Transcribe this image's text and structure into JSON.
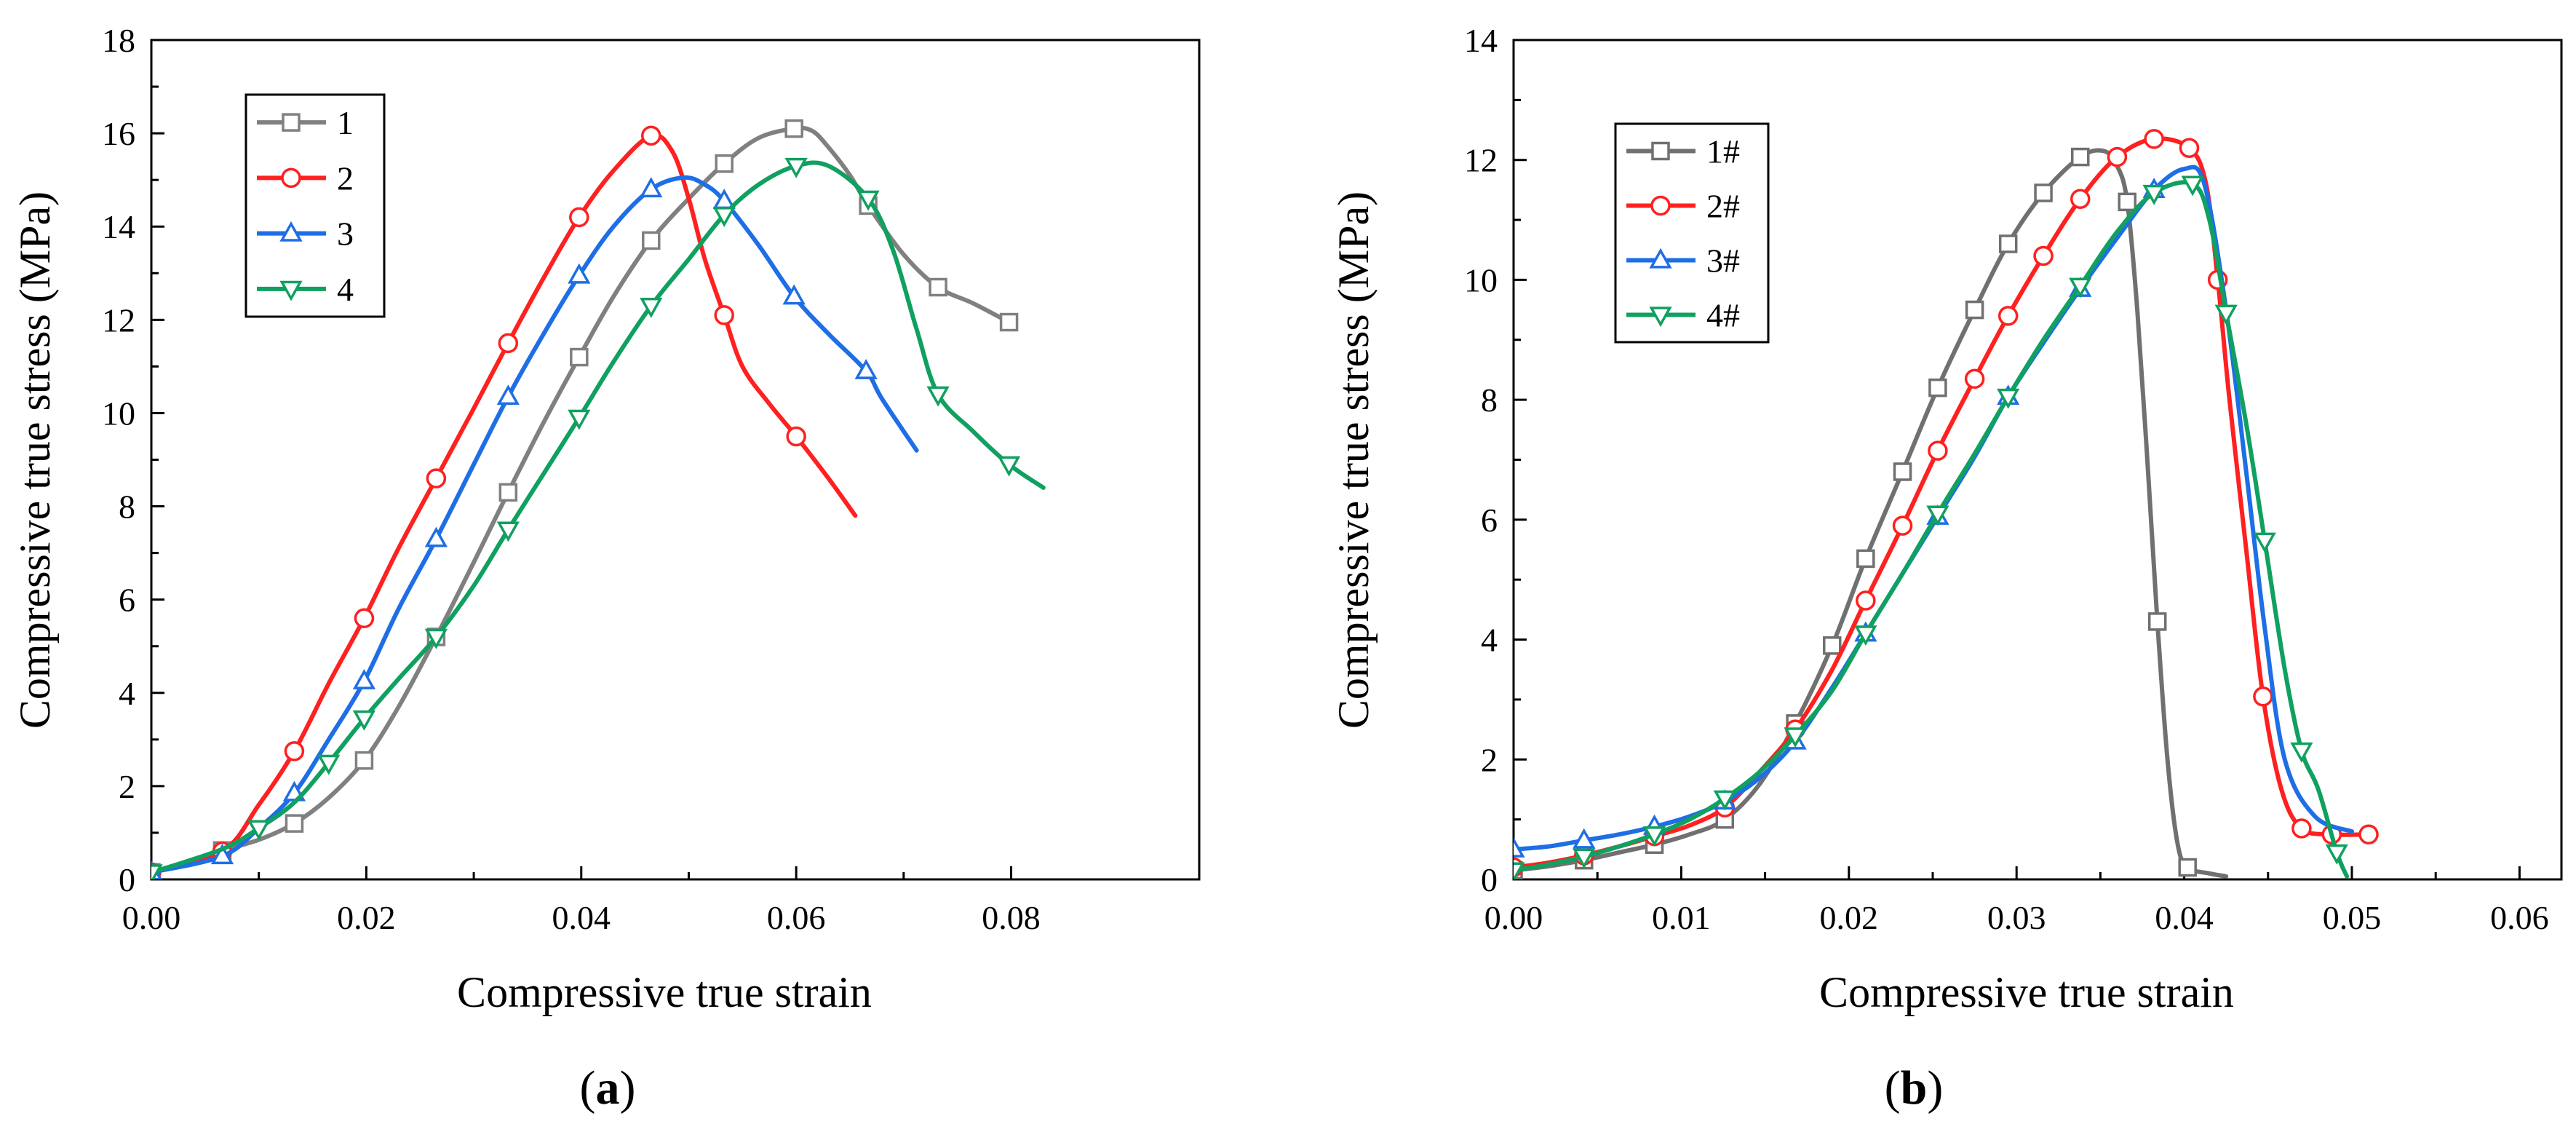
{
  "figure": {
    "panels": [
      {
        "label_open": "(",
        "label_letter": "a",
        "label_close": ")"
      },
      {
        "label_open": "(",
        "label_letter": "b",
        "label_close": ")"
      }
    ]
  },
  "chart_data": [
    {
      "type": "line",
      "title": "",
      "xlabel": "Compressive true strain",
      "ylabel": "Compressive true stress (MPa)",
      "xlim": [
        0,
        0.0975
      ],
      "ylim": [
        0,
        18
      ],
      "xticks": [
        0,
        0.02,
        0.04,
        0.06,
        0.08
      ],
      "xtick_labels": [
        "0.00",
        "0.02",
        "0.04",
        "0.06",
        "0.08"
      ],
      "yticks": [
        0,
        2,
        4,
        6,
        8,
        10,
        12,
        14,
        16,
        18
      ],
      "ytick_labels": [
        "0",
        "2",
        "4",
        "6",
        "8",
        "10",
        "12",
        "14",
        "16",
        "18"
      ],
      "grid": false,
      "legend_position": "top-left",
      "series": [
        {
          "name": "1",
          "color": "#808080",
          "marker": "square",
          "x": [
            0,
            0.003,
            0.0066,
            0.01,
            0.0133,
            0.0165,
            0.0198,
            0.023,
            0.0265,
            0.03,
            0.0332,
            0.0365,
            0.0398,
            0.043,
            0.0465,
            0.05,
            0.0533,
            0.0565,
            0.0598,
            0.0615,
            0.063,
            0.065,
            0.0667,
            0.07,
            0.0732,
            0.0765,
            0.0798
          ],
          "y": [
            0.15,
            0.35,
            0.62,
            0.85,
            1.2,
            1.75,
            2.55,
            3.7,
            5.2,
            6.8,
            8.3,
            9.8,
            11.2,
            12.5,
            13.7,
            14.6,
            15.35,
            15.9,
            16.1,
            16.05,
            15.7,
            15.1,
            14.45,
            13.4,
            12.7,
            12.35,
            11.95
          ],
          "markers_at": [
            0,
            2,
            4,
            6,
            8,
            10,
            12,
            14,
            16,
            18,
            22,
            24,
            26
          ]
        },
        {
          "name": "2",
          "color": "#ff2020",
          "marker": "circle",
          "x": [
            0,
            0.0066,
            0.01,
            0.0133,
            0.0165,
            0.0198,
            0.023,
            0.0265,
            0.03,
            0.0332,
            0.0365,
            0.0398,
            0.043,
            0.0465,
            0.0485,
            0.05,
            0.0515,
            0.0533,
            0.055,
            0.0575,
            0.06,
            0.063,
            0.0655
          ],
          "y": [
            0.15,
            0.6,
            1.6,
            2.75,
            4.2,
            5.6,
            7.1,
            8.6,
            10.1,
            11.5,
            12.9,
            14.2,
            15.2,
            15.95,
            15.6,
            14.6,
            13.3,
            12.1,
            11.0,
            10.2,
            9.5,
            8.6,
            7.8
          ],
          "markers_at": [
            0,
            1,
            3,
            5,
            7,
            9,
            11,
            13,
            17,
            20
          ]
        },
        {
          "name": "3",
          "color": "#1e6ee6",
          "marker": "triangle-up",
          "x": [
            0,
            0.0066,
            0.01,
            0.0133,
            0.0165,
            0.0198,
            0.023,
            0.0265,
            0.03,
            0.0332,
            0.0365,
            0.0398,
            0.043,
            0.0465,
            0.0495,
            0.0515,
            0.0533,
            0.0565,
            0.0598,
            0.063,
            0.0665,
            0.068,
            0.0712
          ],
          "y": [
            0.15,
            0.5,
            1.1,
            1.85,
            3.0,
            4.25,
            5.8,
            7.3,
            8.9,
            10.35,
            11.7,
            12.95,
            14.0,
            14.8,
            15.05,
            14.9,
            14.55,
            13.6,
            12.5,
            11.7,
            10.9,
            10.3,
            9.2
          ],
          "markers_at": [
            0,
            1,
            3,
            5,
            7,
            9,
            11,
            13,
            16,
            18,
            20
          ]
        },
        {
          "name": "4",
          "color": "#10a060",
          "marker": "triangle-down",
          "x": [
            0,
            0.0066,
            0.01,
            0.0133,
            0.0165,
            0.0198,
            0.023,
            0.0265,
            0.03,
            0.0332,
            0.0365,
            0.0398,
            0.043,
            0.0465,
            0.05,
            0.0533,
            0.0565,
            0.06,
            0.063,
            0.0667,
            0.069,
            0.0712,
            0.0732,
            0.0765,
            0.0798,
            0.083
          ],
          "y": [
            0.15,
            0.65,
            1.1,
            1.65,
            2.5,
            3.45,
            4.3,
            5.2,
            6.3,
            7.5,
            8.7,
            9.9,
            11.1,
            12.3,
            13.3,
            14.25,
            14.9,
            15.3,
            15.3,
            14.6,
            13.5,
            11.8,
            10.4,
            9.6,
            8.9,
            8.4
          ],
          "markers_at": [
            0,
            2,
            4,
            5,
            7,
            9,
            11,
            13,
            15,
            17,
            19,
            22,
            24
          ]
        }
      ]
    },
    {
      "type": "line",
      "title": "",
      "xlabel": "Compressive true strain",
      "ylabel": "Compressive true stress (MPa)",
      "xlim": [
        0,
        0.0625
      ],
      "ylim": [
        0,
        14
      ],
      "xticks": [
        0,
        0.01,
        0.02,
        0.03,
        0.04,
        0.05,
        0.06
      ],
      "xtick_labels": [
        "0.00",
        "0.01",
        "0.02",
        "0.03",
        "0.04",
        "0.05",
        "0.06"
      ],
      "yticks": [
        0,
        2,
        4,
        6,
        8,
        10,
        12,
        14
      ],
      "ytick_labels": [
        "0",
        "2",
        "4",
        "6",
        "8",
        "10",
        "12",
        "14"
      ],
      "grid": false,
      "legend_position": "top-left",
      "series": [
        {
          "name": "1#",
          "color": "#707070",
          "marker": "square",
          "x": [
            0,
            0.0021,
            0.0042,
            0.0063,
            0.0084,
            0.0105,
            0.0126,
            0.0147,
            0.0168,
            0.019,
            0.021,
            0.0232,
            0.0253,
            0.0275,
            0.0295,
            0.0316,
            0.0338,
            0.0352,
            0.036,
            0.0366,
            0.0372,
            0.0378,
            0.0384,
            0.039,
            0.0396,
            0.0402,
            0.0415,
            0.0425
          ],
          "y": [
            0.15,
            0.22,
            0.32,
            0.45,
            0.58,
            0.75,
            1.0,
            1.6,
            2.6,
            3.9,
            5.35,
            6.8,
            8.2,
            9.5,
            10.6,
            11.45,
            12.05,
            12.15,
            11.9,
            11.3,
            9.5,
            7.0,
            4.3,
            2.0,
            0.6,
            0.2,
            0.1,
            0.05
          ],
          "markers_at": [
            0,
            2,
            4,
            6,
            8,
            9,
            10,
            11,
            12,
            13,
            14,
            15,
            16,
            19,
            22,
            25
          ]
        },
        {
          "name": "2#",
          "color": "#ff2020",
          "marker": "circle",
          "x": [
            0,
            0.0021,
            0.0042,
            0.0063,
            0.0084,
            0.0105,
            0.0126,
            0.0147,
            0.0168,
            0.019,
            0.021,
            0.0232,
            0.0253,
            0.0275,
            0.0295,
            0.0316,
            0.0338,
            0.036,
            0.0382,
            0.0403,
            0.0413,
            0.042,
            0.0427,
            0.0437,
            0.0447,
            0.0458,
            0.047,
            0.0488,
            0.051
          ],
          "y": [
            0.2,
            0.28,
            0.4,
            0.55,
            0.72,
            0.9,
            1.2,
            1.8,
            2.5,
            3.5,
            4.65,
            5.9,
            7.15,
            8.35,
            9.4,
            10.4,
            11.35,
            12.05,
            12.35,
            12.2,
            11.6,
            10.0,
            8.0,
            5.5,
            3.05,
            1.5,
            0.85,
            0.75,
            0.75
          ],
          "markers_at": [
            0,
            2,
            4,
            6,
            8,
            10,
            11,
            12,
            13,
            14,
            15,
            16,
            17,
            18,
            19,
            21,
            24,
            26,
            27,
            28
          ]
        },
        {
          "name": "3#",
          "color": "#1e6ee6",
          "marker": "triangle-up",
          "x": [
            0,
            0.0021,
            0.0042,
            0.0063,
            0.0084,
            0.0105,
            0.0126,
            0.0147,
            0.0168,
            0.019,
            0.021,
            0.0232,
            0.0253,
            0.0275,
            0.0295,
            0.0316,
            0.0338,
            0.036,
            0.0382,
            0.04,
            0.0412,
            0.0425,
            0.0437,
            0.0448,
            0.046,
            0.0478,
            0.05
          ],
          "y": [
            0.5,
            0.55,
            0.65,
            0.75,
            0.88,
            1.05,
            1.3,
            1.7,
            2.3,
            3.2,
            4.1,
            5.1,
            6.05,
            7.05,
            8.05,
            8.95,
            9.85,
            10.7,
            11.5,
            11.85,
            11.6,
            9.5,
            6.8,
            4.2,
            2.0,
            1.05,
            0.8
          ],
          "markers_at": [
            0,
            2,
            4,
            6,
            8,
            10,
            12,
            14,
            16,
            18
          ]
        },
        {
          "name": "4#",
          "color": "#10a060",
          "marker": "triangle-down",
          "x": [
            0,
            0.0021,
            0.0042,
            0.0063,
            0.0084,
            0.0105,
            0.0126,
            0.0147,
            0.0168,
            0.019,
            0.021,
            0.0232,
            0.0253,
            0.0275,
            0.0295,
            0.0316,
            0.0338,
            0.036,
            0.0382,
            0.0405,
            0.0415,
            0.0425,
            0.0437,
            0.0448,
            0.046,
            0.047,
            0.048,
            0.0491,
            0.0497
          ],
          "y": [
            0.15,
            0.25,
            0.38,
            0.55,
            0.75,
            1.0,
            1.35,
            1.8,
            2.4,
            3.15,
            4.1,
            5.1,
            6.1,
            7.1,
            8.05,
            9.0,
            9.9,
            10.8,
            11.45,
            11.6,
            11.0,
            9.45,
            7.6,
            5.65,
            3.5,
            2.15,
            1.5,
            0.45,
            0.05
          ],
          "markers_at": [
            0,
            2,
            4,
            6,
            8,
            10,
            12,
            14,
            16,
            18,
            19,
            21,
            23,
            25,
            27
          ]
        }
      ]
    }
  ]
}
